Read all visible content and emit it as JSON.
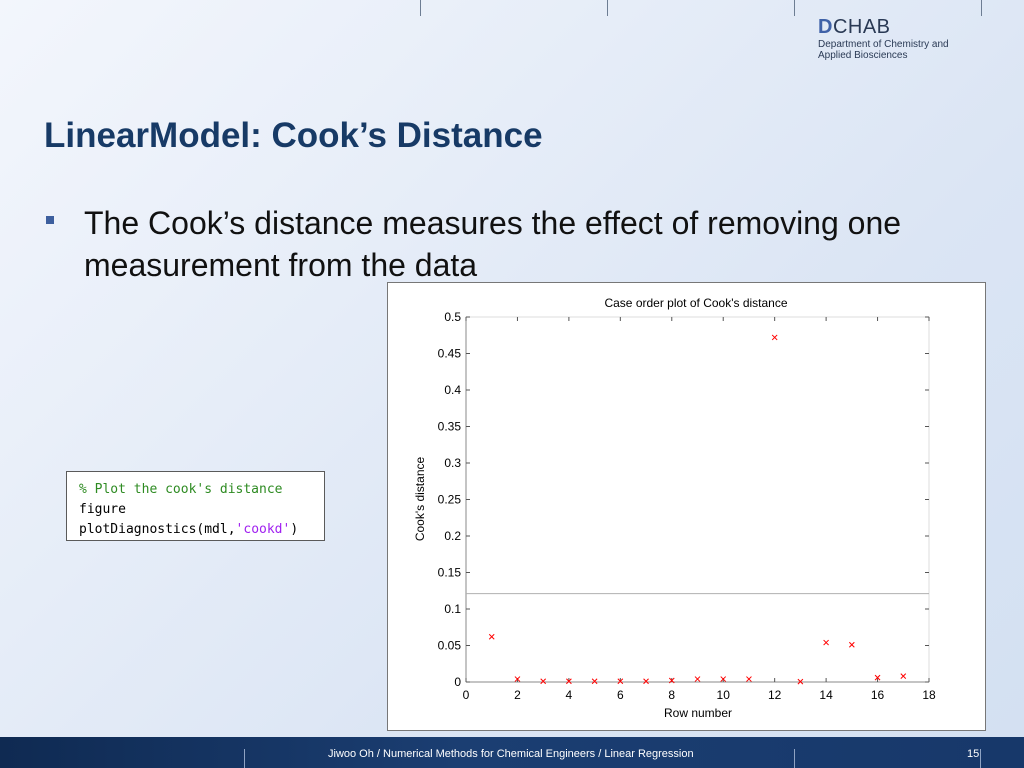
{
  "logo": {
    "letter": "D",
    "name": "CHAB",
    "line1": "Department of Chemistry and",
    "line2": "Applied Biosciences"
  },
  "slide": {
    "title": "LinearModel: Cook’s Distance",
    "bullet": "The Cook’s distance measures the effect of removing one measurement from the data"
  },
  "code": {
    "line1": "% Plot the cook's distance",
    "line2": "figure",
    "line3_fn": "plotDiagnostics(mdl,",
    "line3_str": "'cookd'",
    "line3_end": ")"
  },
  "footer": {
    "text": "Jiwoo Oh / Numerical Methods for Chemical Engineers / Linear Regression",
    "page": "15"
  },
  "chart_data": {
    "type": "scatter",
    "title": "Case order plot of Cook's distance",
    "xlabel": "Row number",
    "ylabel": "Cook's distance",
    "xlim": [
      0,
      18
    ],
    "ylim": [
      0,
      0.5
    ],
    "xticks": [
      "0",
      "2",
      "4",
      "6",
      "8",
      "10",
      "12",
      "14",
      "16",
      "18"
    ],
    "yticks": [
      "0",
      "0.05",
      "0.1",
      "0.15",
      "0.2",
      "0.25",
      "0.3",
      "0.35",
      "0.4",
      "0.45",
      "0.5"
    ],
    "reference_line": 0.121,
    "grid": false,
    "x": [
      1,
      2,
      3,
      4,
      5,
      6,
      7,
      8,
      9,
      10,
      11,
      12,
      13,
      14,
      15,
      16,
      17
    ],
    "y": [
      0.062,
      0.004,
      0.001,
      0.001,
      0.001,
      0.001,
      0.001,
      0.002,
      0.004,
      0.004,
      0.004,
      0.472,
      0.0005,
      0.054,
      0.051,
      0.006,
      0.008
    ],
    "point_color": "#ff0000"
  }
}
